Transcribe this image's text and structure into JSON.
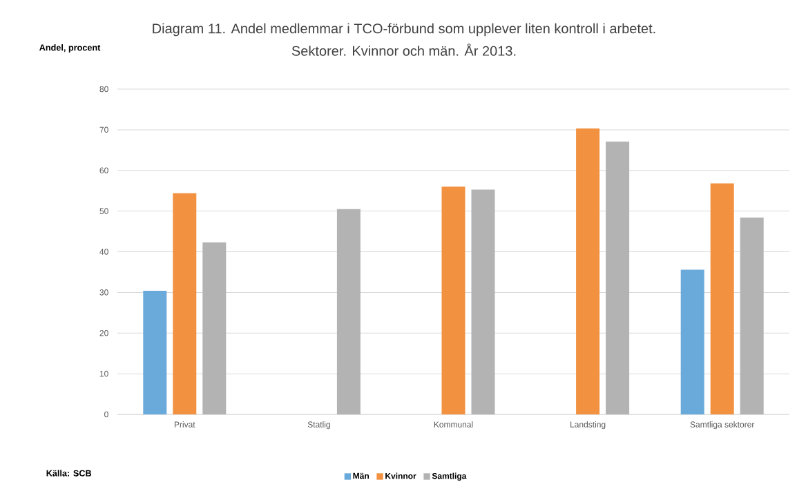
{
  "chart_data": {
    "type": "bar",
    "title": "Diagram 11. Andel medlemmar i TCO-förbund som upplever liten kontroll i arbetet.",
    "subtitle": "Sektorer. Kvinnor och män. År 2013.",
    "ylabel": "Andel, procent",
    "annotations": [
      "Källa: SCB"
    ],
    "categories": [
      "Privat",
      "Statlig",
      "Kommunal",
      "Landsting",
      "Samtliga sektorer"
    ],
    "series": [
      {
        "name": "Män",
        "color": "#6aaadb",
        "values": [
          30.4,
          null,
          null,
          null,
          35.6
        ]
      },
      {
        "name": "Kvinnor",
        "color": "#f29140",
        "values": [
          54.4,
          null,
          56.0,
          70.3,
          56.8
        ]
      },
      {
        "name": "Samtliga",
        "color": "#b3b3b3",
        "values": [
          42.3,
          50.5,
          55.3,
          67.1,
          48.4
        ]
      }
    ],
    "ylim": [
      0,
      80
    ],
    "yticks": [
      0,
      10,
      20,
      30,
      40,
      50,
      60,
      70,
      80
    ],
    "grid": "y",
    "legend": "bottom"
  }
}
